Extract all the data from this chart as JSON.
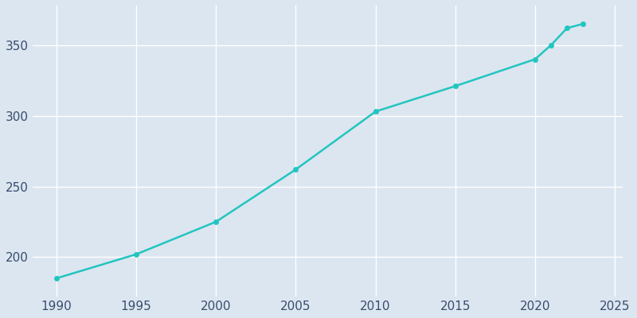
{
  "years": [
    1990,
    1995,
    2000,
    2005,
    2010,
    2015,
    2020,
    2021,
    2022,
    2023
  ],
  "values": [
    185,
    202,
    225,
    262,
    303,
    321,
    340,
    350,
    362,
    365
  ],
  "line_color": "#22c5c0",
  "marker_color": "#22c5c0",
  "bg_color": "#dce6f0",
  "plot_bg_color": "#dce6f0",
  "grid_color": "#ffffff",
  "xlim": [
    1988.5,
    2025.5
  ],
  "ylim": [
    172,
    378
  ],
  "xticks": [
    1990,
    1995,
    2000,
    2005,
    2010,
    2015,
    2020,
    2025
  ],
  "yticks": [
    200,
    250,
    300,
    350
  ],
  "tick_label_color": "#374c6e",
  "tick_fontsize": 11,
  "line_width": 1.8,
  "marker_size": 4.5,
  "marker_style": "o"
}
